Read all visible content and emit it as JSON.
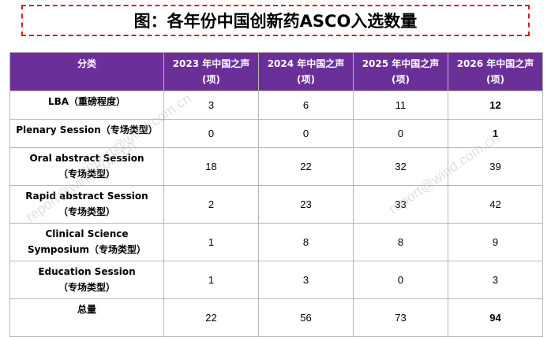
{
  "title": "图：各年份中国创新药ASCO入选数量",
  "table": {
    "headers": [
      [
        "分类"
      ],
      [
        "2023 年中国之声",
        "(项)"
      ],
      [
        "2024 年中国之声",
        "(项)"
      ],
      [
        "2025 年中国之声",
        "(项)"
      ],
      [
        "2026 年中国之声",
        "(项)"
      ]
    ],
    "rows": [
      {
        "label": [
          "LBA（重磅程度）"
        ],
        "values": [
          "3",
          "6",
          "11",
          "12"
        ],
        "bold_last": true,
        "short": true
      },
      {
        "label": [
          "Plenary Session（专场类型）"
        ],
        "values": [
          "0",
          "0",
          "0",
          "1"
        ],
        "bold_last": true,
        "short": true
      },
      {
        "label": [
          "Oral abstract Session",
          "（专场类型）"
        ],
        "values": [
          "18",
          "22",
          "32",
          "39"
        ],
        "bold_last": false,
        "short": false
      },
      {
        "label": [
          "Rapid abstract Session",
          "（专场类型）"
        ],
        "values": [
          "2",
          "23",
          "33",
          "42"
        ],
        "bold_last": false,
        "short": false
      },
      {
        "label": [
          "Clinical Science",
          "Symposium（专场类型）"
        ],
        "values": [
          "1",
          "8",
          "8",
          "9"
        ],
        "bold_last": false,
        "short": false
      },
      {
        "label": [
          "Education Session",
          "（专场类型）"
        ],
        "values": [
          "1",
          "3",
          "0",
          "3"
        ],
        "bold_last": false,
        "short": false
      },
      {
        "label": [
          "总量"
        ],
        "values": [
          "22",
          "56",
          "73",
          "94"
        ],
        "bold_last": true,
        "short": false
      }
    ]
  },
  "watermarks": [
    "report@wind.com.cn",
    "report@wind.com.cn",
    "report@wind.com.cn"
  ]
}
